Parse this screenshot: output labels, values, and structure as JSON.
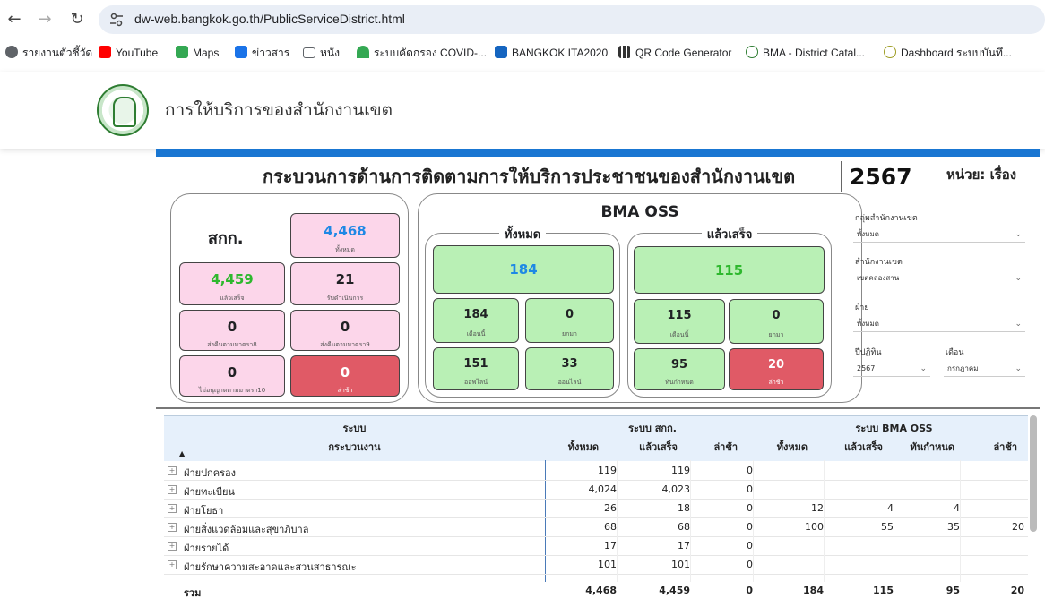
{
  "browser": {
    "url": "dw-web.bangkok.go.th/PublicServiceDistrict.html",
    "bookmarks": [
      {
        "label": "รายงานตัวชี้วัด",
        "icon": "globe-icon",
        "color": "#5f6368"
      },
      {
        "label": "YouTube",
        "icon": "youtube-icon",
        "color": "#ff0000"
      },
      {
        "label": "Maps",
        "icon": "maps-icon",
        "color": "#34a853"
      },
      {
        "label": "ข่าวสาร",
        "icon": "google-sheets-icon",
        "color": "#1a73e8"
      },
      {
        "label": "หนัง",
        "icon": "folder-icon",
        "color": "#5f6368"
      },
      {
        "label": "ระบบคัดกรอง COVID-...",
        "icon": "wifi-icon",
        "color": "#34a853"
      },
      {
        "label": "BANGKOK ITA2020",
        "icon": "ita-icon",
        "color": "#1565c0"
      },
      {
        "label": "QR Code Generator",
        "icon": "qr-icon",
        "color": "#333333"
      },
      {
        "label": "BMA - District Catal...",
        "icon": "bma-icon",
        "color": "#2e7d32"
      },
      {
        "label": "Dashboard ระบบบันทึ...",
        "icon": "bma-icon",
        "color": "#9e9d24"
      }
    ]
  },
  "header": {
    "title": "การให้บริการของสำนักงานเขต"
  },
  "report": {
    "title": "กระบวนการด้านการติดตามการให้บริการประชาชนของสำนักงานเขต",
    "year": "2567",
    "unit": "หน่วย: เรื่อง"
  },
  "sakk": {
    "title": "สกก.",
    "total": {
      "value": "4,468",
      "label": "ทั้งหมด"
    },
    "done": {
      "value": "4,459",
      "label": "แล้วเสร็จ"
    },
    "in_progress": {
      "value": "21",
      "label": "รับดำเนินการ"
    },
    "sec8": {
      "value": "0",
      "label": "ส่งคืนตามมาตรา8"
    },
    "sec9": {
      "value": "0",
      "label": "ส่งคืนตามมาตรา9"
    },
    "sec10": {
      "value": "0",
      "label": "ไม่อนุญาตตามมาตรา10"
    },
    "late": {
      "value": "0",
      "label": "ล่าช้า"
    }
  },
  "oss": {
    "title": "BMA OSS",
    "all": {
      "title": "ทั้งหมด",
      "total": "184",
      "this_month": {
        "value": "184",
        "label": "เดือนนี้"
      },
      "cancel": {
        "value": "0",
        "label": "ยกมา"
      },
      "offline": {
        "value": "151",
        "label": "ออฟไลน์"
      },
      "online": {
        "value": "33",
        "label": "ออนไลน์"
      }
    },
    "done": {
      "title": "แล้วเสร็จ",
      "total": "115",
      "this_month": {
        "value": "115",
        "label": "เดือนนี้"
      },
      "cancel": {
        "value": "0",
        "label": "ยกมา"
      },
      "on_time": {
        "value": "95",
        "label": "ทันกำหนด"
      },
      "late": {
        "value": "20",
        "label": "ล่าช้า"
      }
    }
  },
  "filters": {
    "group_label": "กลุ่มสำนักงานเขต",
    "group_value": "ทั้งหมด",
    "district_label": "สำนักงานเขต",
    "district_value": "เขตคลองสาน",
    "section_label": "ฝ่าย",
    "section_value": "ทั้งหมด",
    "year_label": "ปีปฏิทิน",
    "year_value": "2567",
    "month_label": "เดือน",
    "month_value": "กรกฎาคม"
  },
  "table": {
    "h_system": "ระบบ",
    "h_process": "กระบวนงาน",
    "h_sakk": "ระบบ สกก.",
    "h_oss": "ระบบ BMA OSS",
    "cols": [
      "ทั้งหมด",
      "แล้วเสร็จ",
      "ล่าช้า",
      "ทั้งหมด",
      "แล้วเสร็จ",
      "ทันกำหนด",
      "ล่าช้า"
    ],
    "rows": [
      {
        "name": "ฝ่ายปกครอง",
        "v": [
          "119",
          "119",
          "0",
          "",
          "",
          "",
          ""
        ]
      },
      {
        "name": "ฝ่ายทะเบียน",
        "v": [
          "4,024",
          "4,023",
          "0",
          "",
          "",
          "",
          ""
        ]
      },
      {
        "name": "ฝ่ายโยธา",
        "v": [
          "26",
          "18",
          "0",
          "12",
          "4",
          "4",
          ""
        ]
      },
      {
        "name": "ฝ่ายสิ่งแวดล้อมและสุขาภิบาล",
        "v": [
          "68",
          "68",
          "0",
          "100",
          "55",
          "35",
          "20"
        ]
      },
      {
        "name": "ฝ่ายรายได้",
        "v": [
          "17",
          "17",
          "0",
          "",
          "",
          "",
          ""
        ]
      },
      {
        "name": "ฝ่ายรักษาความสะอาดและสวนสาธารณะ",
        "v": [
          "101",
          "101",
          "0",
          "",
          "",
          "",
          ""
        ]
      }
    ],
    "total": {
      "name": "รวม",
      "v": [
        "4,468",
        "4,459",
        "0",
        "184",
        "115",
        "95",
        "20"
      ]
    }
  }
}
